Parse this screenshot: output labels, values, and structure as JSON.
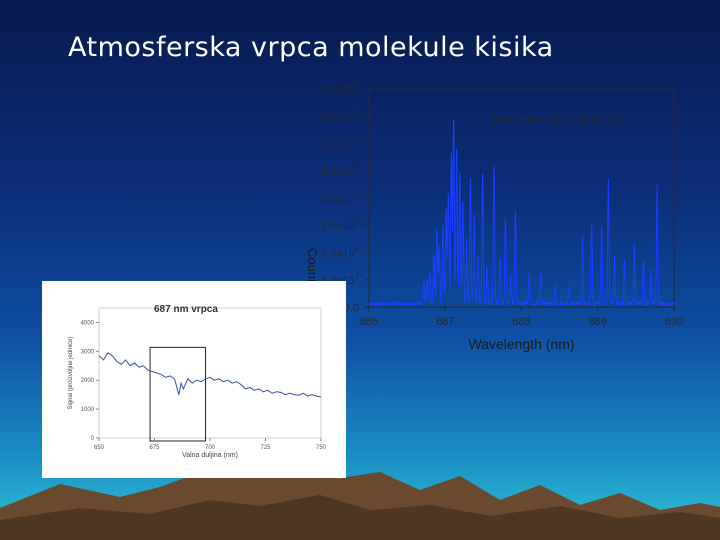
{
  "slide": {
    "title": "Atmosferska vrpca molekule kisika"
  },
  "chart_data": [
    {
      "type": "line",
      "title": "",
      "annotation": "500 mbar Ar + 10% O",
      "annotation_subscript": "2",
      "xlabel": "Wavelength (nm)",
      "ylabel": "",
      "ylabel_fragment": "Counts/s",
      "xlim": [
        686,
        690
      ],
      "ylim": [
        0,
        4.0
      ],
      "x_ticks": [
        "686",
        "687",
        "688",
        "689",
        "690"
      ],
      "y_ticks": [
        {
          "mantissa": "0,0",
          "exp": ""
        },
        {
          "mantissa": "5,0x10",
          "exp": "7"
        },
        {
          "mantissa": "1,0x10",
          "exp": "8"
        },
        {
          "mantissa": "1,5x10",
          "exp": "8"
        },
        {
          "mantissa": "2,0x10",
          "exp": "8"
        },
        {
          "mantissa": "2,5x10",
          "exp": "8"
        },
        {
          "mantissa": "3,0x10",
          "exp": "8"
        },
        {
          "mantissa": "3,5x10",
          "exp": "8"
        },
        {
          "mantissa": "4,0x10",
          "exp": "8"
        }
      ],
      "series_color": "#1a3fff",
      "series": [
        {
          "name": "",
          "baseline": 0.03,
          "peaks": [
            {
              "x": 686.72,
              "y": 0.4
            },
            {
              "x": 686.76,
              "y": 0.45
            },
            {
              "x": 686.8,
              "y": 0.6
            },
            {
              "x": 686.85,
              "y": 0.9
            },
            {
              "x": 686.89,
              "y": 1.4
            },
            {
              "x": 686.92,
              "y": 1.1
            },
            {
              "x": 686.97,
              "y": 1.45
            },
            {
              "x": 687.01,
              "y": 1.75
            },
            {
              "x": 687.04,
              "y": 2.05
            },
            {
              "x": 687.08,
              "y": 2.75
            },
            {
              "x": 687.11,
              "y": 3.45
            },
            {
              "x": 687.15,
              "y": 2.9
            },
            {
              "x": 687.19,
              "y": 2.45
            },
            {
              "x": 687.23,
              "y": 1.9
            },
            {
              "x": 687.28,
              "y": 1.2
            },
            {
              "x": 687.33,
              "y": 2.35
            },
            {
              "x": 687.38,
              "y": 1.65
            },
            {
              "x": 687.43,
              "y": 0.9
            },
            {
              "x": 687.49,
              "y": 2.45
            },
            {
              "x": 687.55,
              "y": 0.7
            },
            {
              "x": 687.64,
              "y": 2.55
            },
            {
              "x": 687.72,
              "y": 0.85
            },
            {
              "x": 687.79,
              "y": 1.6
            },
            {
              "x": 687.86,
              "y": 0.5
            },
            {
              "x": 687.92,
              "y": 1.7
            },
            {
              "x": 688.1,
              "y": 0.55
            },
            {
              "x": 688.25,
              "y": 0.6
            },
            {
              "x": 688.44,
              "y": 0.35
            },
            {
              "x": 688.62,
              "y": 0.3
            },
            {
              "x": 688.8,
              "y": 1.25
            },
            {
              "x": 688.92,
              "y": 1.45
            },
            {
              "x": 689.05,
              "y": 1.45
            },
            {
              "x": 689.14,
              "y": 2.3
            },
            {
              "x": 689.22,
              "y": 0.9
            },
            {
              "x": 689.35,
              "y": 0.8
            },
            {
              "x": 689.48,
              "y": 1.1
            },
            {
              "x": 689.6,
              "y": 0.75
            },
            {
              "x": 689.7,
              "y": 0.6
            },
            {
              "x": 689.78,
              "y": 2.2
            }
          ]
        }
      ]
    },
    {
      "type": "line",
      "title": "687 nm vrpca",
      "xlabel": "Valna duljina (nm)",
      "ylabel": "Signal (proizvoljne jedinice)",
      "xlim": [
        650,
        750
      ],
      "ylim": [
        0,
        4500
      ],
      "x_ticks": [
        "650",
        "675",
        "700",
        "725",
        "750"
      ],
      "y_ticks": [
        "0",
        "1000",
        "2000",
        "3000",
        "4000"
      ],
      "series": [
        {
          "name": "",
          "x": [
            650,
            652,
            654,
            656,
            658,
            660,
            662,
            664,
            666,
            668,
            670,
            672,
            674,
            676,
            678,
            680,
            682,
            684,
            686,
            687,
            688,
            690,
            692,
            694,
            696,
            698,
            700,
            702,
            704,
            706,
            708,
            710,
            712,
            714,
            716,
            718,
            720,
            722,
            724,
            726,
            728,
            730,
            732,
            734,
            736,
            738,
            740,
            742,
            744,
            746,
            748,
            750
          ],
          "y": [
            2850,
            2700,
            2950,
            2850,
            2650,
            2550,
            2700,
            2500,
            2600,
            2450,
            2500,
            2350,
            2300,
            2250,
            2200,
            2100,
            2150,
            2050,
            1500,
            1900,
            1700,
            2050,
            1900,
            2000,
            1950,
            2050,
            2100,
            2000,
            2050,
            1950,
            2000,
            1900,
            1950,
            1850,
            1700,
            1750,
            1650,
            1700,
            1600,
            1650,
            1550,
            1600,
            1580,
            1500,
            1550,
            1500,
            1480,
            1550,
            1450,
            1500,
            1450,
            1420
          ]
        }
      ],
      "highlight_range": [
        673,
        698
      ]
    }
  ]
}
